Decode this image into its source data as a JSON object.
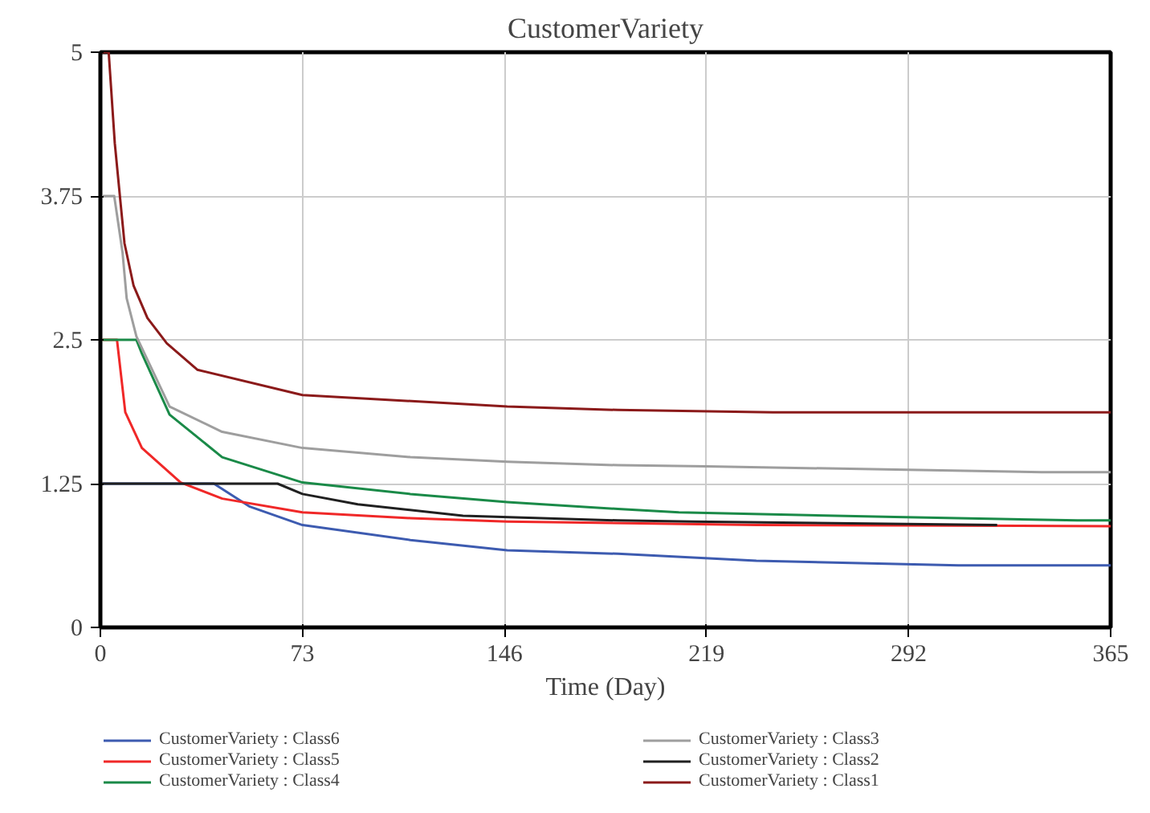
{
  "chart_data": {
    "type": "line",
    "title": "CustomerVariety",
    "xlabel": "Time (Day)",
    "xlim": [
      0,
      365
    ],
    "xticks": [
      0,
      73,
      146,
      219,
      292,
      365
    ],
    "ylim": [
      0,
      5
    ],
    "yticks": [
      0,
      1.25,
      2.5,
      3.75,
      5
    ],
    "grid": true,
    "legend": "bottom",
    "marker": "none",
    "line_style": "solid",
    "series": [
      {
        "name": "CustomerVariety : Class6",
        "color": "#3d5bb0",
        "x": [
          0,
          41,
          54,
          73,
          112,
          147,
          187,
          237,
          310,
          365
        ],
        "values": [
          1.25,
          1.25,
          1.05,
          0.89,
          0.76,
          0.67,
          0.64,
          0.58,
          0.54,
          0.54
        ]
      },
      {
        "name": "CustomerVariety : Class5",
        "color": "#f02828",
        "x": [
          0,
          6,
          9,
          15,
          29,
          44,
          73,
          112,
          147,
          237,
          365
        ],
        "values": [
          2.5,
          2.5,
          1.87,
          1.56,
          1.26,
          1.12,
          1.0,
          0.95,
          0.92,
          0.89,
          0.88
        ]
      },
      {
        "name": "CustomerVariety : Class4",
        "color": "#1a8a48",
        "x": [
          0,
          13,
          15,
          25,
          44,
          73,
          112,
          147,
          187,
          209,
          287,
          353,
          365
        ],
        "values": [
          2.5,
          2.5,
          2.38,
          1.85,
          1.48,
          1.26,
          1.16,
          1.09,
          1.03,
          1.0,
          0.96,
          0.93,
          0.93
        ]
      },
      {
        "name": "CustomerVariety : Class3",
        "color": "#9e9e9e",
        "x": [
          0,
          5,
          8,
          9.5,
          13,
          25,
          44,
          73,
          112,
          147,
          187,
          219,
          340,
          365
        ],
        "values": [
          3.75,
          3.75,
          3.26,
          2.86,
          2.53,
          1.92,
          1.7,
          1.56,
          1.48,
          1.44,
          1.41,
          1.4,
          1.35,
          1.35
        ]
      },
      {
        "name": "CustomerVariety : Class2",
        "color": "#202020",
        "x": [
          0,
          64,
          73,
          93,
          131,
          187,
          214,
          324
        ],
        "values": [
          1.25,
          1.25,
          1.16,
          1.07,
          0.97,
          0.93,
          0.92,
          0.89
        ]
      },
      {
        "name": "CustomerVariety : Class1",
        "color": "#8b1a1a",
        "x": [
          0,
          3,
          5.2,
          8.7,
          12,
          17,
          24,
          35,
          73,
          147,
          187,
          243,
          365
        ],
        "values": [
          5,
          5,
          4.21,
          3.34,
          2.97,
          2.69,
          2.47,
          2.24,
          2.02,
          1.92,
          1.89,
          1.87,
          1.87
        ]
      }
    ]
  }
}
